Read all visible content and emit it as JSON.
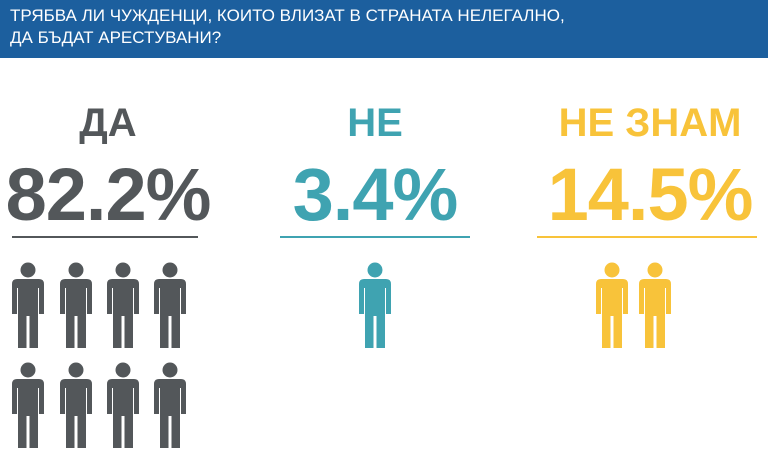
{
  "header": {
    "title_lines": [
      "ТРЯБВА ЛИ ЧУЖДЕНЦИ, КОИТО ВЛИЗАТ В СТРАНАТА НЕЛЕГАЛНО,",
      "ДА БЪДАТ АРЕСТУВАНИ?"
    ]
  },
  "answers": [
    {
      "label": "ДА",
      "value": "82.2%",
      "color": "#53575a",
      "icons": 8
    },
    {
      "label": "НЕ",
      "value": "3.4%",
      "color": "#3fa3b1",
      "icons": 1
    },
    {
      "label": "НЕ ЗНАМ",
      "value": "14.5%",
      "color": "#f8c33a",
      "icons": 2
    }
  ]
}
